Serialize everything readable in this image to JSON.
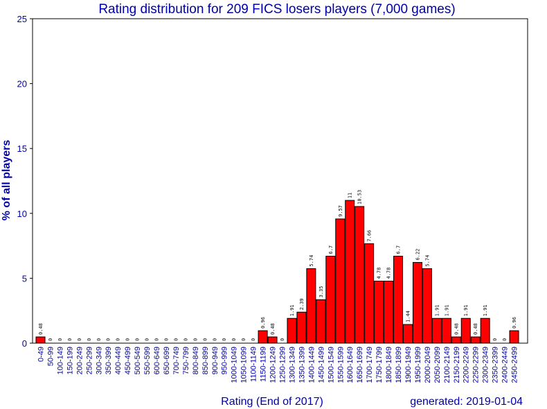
{
  "chart_data": {
    "type": "bar",
    "title": "Rating distribution for 209 FICS losers players (7,000 games)",
    "xlabel": "Rating (End of 2017)",
    "ylabel": "% of all players",
    "footer": "generated: 2019-01-04",
    "ylim": [
      0,
      25
    ],
    "yticks": [
      0,
      5,
      10,
      15,
      20,
      25
    ],
    "grid": false,
    "categories": [
      "0-49",
      "50-99",
      "100-149",
      "150-199",
      "200-249",
      "250-299",
      "300-349",
      "350-399",
      "400-449",
      "450-499",
      "500-549",
      "550-599",
      "600-649",
      "650-699",
      "700-749",
      "750-799",
      "800-849",
      "850-899",
      "900-949",
      "950-999",
      "1000-1049",
      "1050-1099",
      "1100-1149",
      "1150-1199",
      "1200-1249",
      "1250-1299",
      "1300-1349",
      "1350-1399",
      "1400-1449",
      "1450-1499",
      "1500-1549",
      "1550-1599",
      "1600-1649",
      "1650-1699",
      "1700-1749",
      "1750-1799",
      "1800-1849",
      "1850-1899",
      "1900-1949",
      "1950-1999",
      "2000-2049",
      "2050-2099",
      "2100-2149",
      "2150-2199",
      "2200-2249",
      "2250-2299",
      "2300-2349",
      "2350-2399",
      "2400-2449",
      "2450-2499"
    ],
    "values": [
      0.48,
      0,
      0,
      0,
      0,
      0,
      0,
      0,
      0,
      0,
      0,
      0,
      0,
      0,
      0,
      0,
      0,
      0,
      0,
      0,
      0,
      0,
      0,
      0.96,
      0.48,
      0,
      1.91,
      2.39,
      5.74,
      3.35,
      6.7,
      9.57,
      11,
      10.53,
      7.66,
      4.78,
      4.78,
      6.7,
      1.44,
      6.22,
      5.74,
      1.91,
      1.91,
      0.48,
      1.91,
      0.48,
      1.91,
      0,
      0,
      0.96
    ],
    "bar_color": "#ff0000",
    "text_color": "#0000aa"
  }
}
